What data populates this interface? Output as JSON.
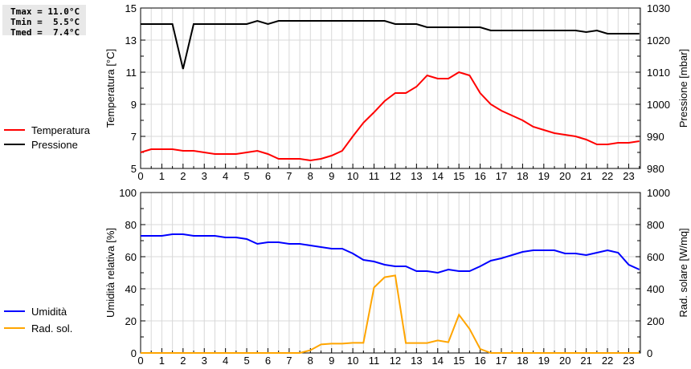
{
  "stats": {
    "tmax": "Tmax = 11.0°C",
    "tmin": "Tmin =  5.5°C",
    "tmed": "Tmed =  7.4°C"
  },
  "colors": {
    "temperature": "#ff0000",
    "pressure": "#000000",
    "humidity": "#0000ff",
    "radiation": "#ffa500"
  },
  "chart_data": [
    {
      "type": "line",
      "title": "",
      "xlabel": "",
      "ylabel": "Temperatura [°C]",
      "y2label": "Pressione [mbar]",
      "xlim": [
        0,
        23.55
      ],
      "ylim": [
        5,
        15
      ],
      "y2lim": [
        980,
        1030
      ],
      "xticks": [
        "0",
        "1",
        "2",
        "3",
        "4",
        "5",
        "6",
        "7",
        "8",
        "9",
        "10",
        "11",
        "12",
        "13",
        "14",
        "15",
        "16",
        "17",
        "18",
        "19",
        "20",
        "21",
        "22",
        "23"
      ],
      "yticks": [
        "5",
        "7",
        "9",
        "11",
        "13",
        "15"
      ],
      "y2ticks": [
        "980",
        "990",
        "1000",
        "1010",
        "1020",
        "1030"
      ],
      "legend": {
        "placement": "left",
        "entries": [
          "Temperatura",
          "Pressione"
        ]
      },
      "x": [
        0,
        0.5,
        1,
        1.5,
        2,
        2.5,
        3,
        3.5,
        4,
        4.5,
        5,
        5.5,
        6,
        6.5,
        7,
        7.5,
        8,
        8.5,
        9,
        9.5,
        10,
        10.5,
        11,
        11.5,
        12,
        12.5,
        13,
        13.5,
        14,
        14.5,
        15,
        15.5,
        16,
        16.5,
        17,
        17.5,
        18,
        18.5,
        19,
        19.5,
        20,
        20.5,
        21,
        21.5,
        22,
        22.5,
        23,
        23.5
      ],
      "series": [
        {
          "name": "Temperatura",
          "axis": "left",
          "values": [
            6.0,
            6.2,
            6.2,
            6.2,
            6.1,
            6.1,
            6.0,
            5.9,
            5.9,
            5.9,
            6.0,
            6.1,
            5.9,
            5.6,
            5.6,
            5.6,
            5.5,
            5.6,
            5.8,
            6.1,
            7.0,
            7.85,
            8.5,
            9.2,
            9.7,
            9.7,
            10.1,
            10.8,
            10.6,
            10.6,
            11.0,
            10.8,
            9.7,
            9.0,
            8.6,
            8.3,
            8.0,
            7.6,
            7.4,
            7.2,
            7.1,
            7.0,
            6.8,
            6.5,
            6.5,
            6.6,
            6.6,
            6.7
          ]
        },
        {
          "name": "Pressione",
          "axis": "right",
          "values": [
            1025,
            1025,
            1025,
            1025,
            1011,
            1025,
            1025,
            1025,
            1025,
            1025,
            1025,
            1026,
            1025,
            1026,
            1026,
            1026,
            1026,
            1026,
            1026,
            1026,
            1026,
            1026,
            1026,
            1026,
            1025,
            1025,
            1025,
            1024,
            1024,
            1024,
            1024,
            1024,
            1024,
            1023,
            1023,
            1023,
            1023,
            1023,
            1023,
            1023,
            1023,
            1023,
            1022.5,
            1023,
            1022,
            1022,
            1022,
            1022
          ]
        }
      ]
    },
    {
      "type": "line",
      "title": "",
      "xlabel": "",
      "ylabel": "Umidità relativa [%]",
      "y2label": "Rad. solare [W/mq]",
      "xlim": [
        0,
        23.55
      ],
      "ylim": [
        0,
        100
      ],
      "y2lim": [
        0,
        1000
      ],
      "xticks": [
        "0",
        "1",
        "2",
        "3",
        "4",
        "5",
        "6",
        "7",
        "8",
        "9",
        "10",
        "11",
        "12",
        "13",
        "14",
        "15",
        "16",
        "17",
        "18",
        "19",
        "20",
        "21",
        "22",
        "23"
      ],
      "yticks": [
        "0",
        "20",
        "40",
        "60",
        "80",
        "100"
      ],
      "y2ticks": [
        "0",
        "200",
        "400",
        "600",
        "800",
        "1000"
      ],
      "legend": {
        "placement": "left",
        "entries": [
          "Umidità",
          "Rad. sol."
        ]
      },
      "x": [
        0,
        0.5,
        1,
        1.5,
        2,
        2.5,
        3,
        3.5,
        4,
        4.5,
        5,
        5.5,
        6,
        6.5,
        7,
        7.5,
        8,
        8.5,
        9,
        9.5,
        10,
        10.5,
        11,
        11.5,
        12,
        12.5,
        13,
        13.5,
        14,
        14.5,
        15,
        15.5,
        16,
        16.5,
        17,
        17.5,
        18,
        18.5,
        19,
        19.5,
        20,
        20.5,
        21,
        21.5,
        22,
        22.5,
        23,
        23.5
      ],
      "series": [
        {
          "name": "Umidità",
          "axis": "left",
          "values": [
            73,
            73,
            73,
            74,
            74,
            73,
            73,
            73,
            72,
            72,
            71,
            68,
            69,
            69,
            68,
            68,
            67,
            66,
            65,
            65,
            62,
            58,
            57,
            55,
            54,
            54,
            51,
            51,
            50,
            52,
            51,
            51,
            54,
            57.5,
            59,
            61,
            63,
            64,
            64,
            64,
            62,
            62,
            61,
            62.5,
            64,
            62.5,
            55,
            52
          ]
        },
        {
          "name": "Rad. sol.",
          "axis": "right",
          "values": [
            0,
            0,
            0,
            0,
            0,
            0,
            0,
            0,
            0,
            0,
            0,
            0,
            0,
            0,
            0,
            0,
            17,
            53,
            58,
            58,
            63,
            63,
            408,
            472,
            483,
            62,
            62,
            62,
            78,
            67,
            238,
            150,
            25,
            0,
            0,
            0,
            0,
            0,
            0,
            0,
            0,
            0,
            0,
            0,
            0,
            0,
            0,
            0
          ]
        }
      ]
    }
  ]
}
